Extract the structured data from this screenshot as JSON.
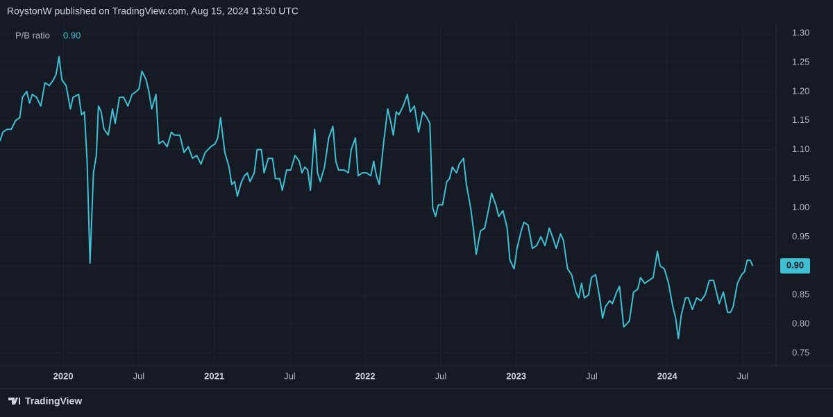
{
  "chart_data": {
    "type": "line",
    "title": "RoystonW published on TradingView.com, Aug 15, 2024 13:50 UTC",
    "brand": "TradingView",
    "current_value_label": "0.90",
    "grid": true,
    "x": [
      2019.581,
      2019.6,
      2019.628,
      2019.656,
      2019.684,
      2019.712,
      2019.73,
      2019.758,
      2019.777,
      2019.795,
      2019.823,
      2019.851,
      2019.879,
      2019.907,
      2019.935,
      2019.953,
      2019.972,
      2019.991,
      2020.019,
      2020.047,
      2020.065,
      2020.102,
      2020.121,
      2020.14,
      2020.158,
      2020.177,
      2020.2,
      2020.219,
      2020.233,
      2020.251,
      2020.27,
      2020.298,
      2020.326,
      2020.344,
      2020.372,
      2020.4,
      2020.428,
      2020.456,
      2020.484,
      2020.502,
      2020.521,
      2020.549,
      2020.567,
      2020.586,
      2020.614,
      2020.633,
      2020.66,
      2020.688,
      2020.716,
      2020.735,
      2020.772,
      2020.8,
      2020.828,
      2020.856,
      2020.884,
      2020.912,
      2020.94,
      2020.977,
      2021.005,
      2021.023,
      2021.042,
      2021.07,
      2021.098,
      2021.116,
      2021.135,
      2021.153,
      2021.181,
      2021.2,
      2021.219,
      2021.237,
      2021.265,
      2021.284,
      2021.312,
      2021.33,
      2021.358,
      2021.386,
      2021.405,
      2021.433,
      2021.451,
      2021.479,
      2021.507,
      2021.535,
      2021.563,
      2021.581,
      2021.6,
      2021.619,
      2021.637,
      2021.665,
      2021.684,
      2021.702,
      2021.73,
      2021.758,
      2021.786,
      2021.805,
      2021.823,
      2021.86,
      2021.888,
      2021.907,
      2021.935,
      2021.953,
      2021.981,
      2022.009,
      2022.037,
      2022.056,
      2022.074,
      2022.093,
      2022.121,
      2022.149,
      2022.167,
      2022.186,
      2022.205,
      2022.223,
      2022.251,
      2022.279,
      2022.298,
      2022.326,
      2022.353,
      2022.381,
      2022.409,
      2022.428,
      2022.447,
      2022.465,
      2022.484,
      2022.512,
      2022.54,
      2022.558,
      2022.577,
      2022.605,
      2022.623,
      2022.651,
      2022.67,
      2022.698,
      2022.716,
      2022.735,
      2022.763,
      2022.791,
      2022.819,
      2022.837,
      2022.865,
      2022.884,
      2022.912,
      2022.94,
      2022.958,
      2022.986,
      2023.005,
      2023.033,
      2023.051,
      2023.079,
      2023.107,
      2023.135,
      2023.163,
      2023.191,
      2023.219,
      2023.247,
      2023.265,
      2023.293,
      2023.312,
      2023.34,
      2023.367,
      2023.395,
      2023.414,
      2023.433,
      2023.451,
      2023.479,
      2023.498,
      2023.526,
      2023.553,
      2023.572,
      2023.591,
      2023.619,
      2023.637,
      2023.665,
      2023.684,
      2023.712,
      2023.749,
      2023.777,
      2023.805,
      2023.823,
      2023.851,
      2023.879,
      2023.907,
      2023.935,
      2023.953,
      2023.981,
      2024.009,
      2024.037,
      2024.056,
      2024.074,
      2024.093,
      2024.121,
      2024.14,
      2024.167,
      2024.195,
      2024.223,
      2024.251,
      2024.279,
      2024.307,
      2024.326,
      2024.344,
      2024.372,
      2024.4,
      2024.419,
      2024.437,
      2024.465,
      2024.493,
      2024.512,
      2024.53,
      2024.549,
      2024.567
    ],
    "series": [
      {
        "name": "P/B ratio",
        "color": "#3fc1d3",
        "values": [
          1.115,
          1.13,
          1.135,
          1.135,
          1.15,
          1.155,
          1.19,
          1.2,
          1.18,
          1.195,
          1.19,
          1.175,
          1.215,
          1.21,
          1.22,
          1.23,
          1.26,
          1.22,
          1.21,
          1.17,
          1.19,
          1.195,
          1.16,
          1.165,
          1.08,
          0.905,
          1.06,
          1.09,
          1.175,
          1.165,
          1.135,
          1.125,
          1.17,
          1.145,
          1.19,
          1.19,
          1.175,
          1.195,
          1.2,
          1.205,
          1.235,
          1.22,
          1.2,
          1.17,
          1.195,
          1.11,
          1.115,
          1.105,
          1.13,
          1.125,
          1.125,
          1.095,
          1.105,
          1.085,
          1.09,
          1.075,
          1.095,
          1.105,
          1.11,
          1.12,
          1.155,
          1.095,
          1.07,
          1.04,
          1.045,
          1.02,
          1.045,
          1.055,
          1.06,
          1.045,
          1.06,
          1.1,
          1.1,
          1.06,
          1.085,
          1.085,
          1.05,
          1.05,
          1.03,
          1.065,
          1.065,
          1.09,
          1.08,
          1.06,
          1.07,
          1.065,
          1.03,
          1.135,
          1.06,
          1.045,
          1.07,
          1.12,
          1.14,
          1.08,
          1.065,
          1.065,
          1.06,
          1.1,
          1.12,
          1.055,
          1.06,
          1.06,
          1.055,
          1.08,
          1.055,
          1.04,
          1.11,
          1.17,
          1.15,
          1.125,
          1.165,
          1.16,
          1.175,
          1.195,
          1.165,
          1.175,
          1.13,
          1.165,
          1.155,
          1.145,
          1.0,
          0.985,
          1.005,
          1.005,
          1.045,
          1.05,
          1.07,
          1.06,
          1.075,
          1.085,
          1.04,
          1.0,
          0.965,
          0.92,
          0.96,
          0.965,
          1.0,
          1.025,
          1.005,
          0.985,
          0.995,
          0.965,
          0.91,
          0.895,
          0.93,
          0.96,
          0.975,
          0.97,
          0.93,
          0.935,
          0.95,
          0.935,
          0.965,
          0.945,
          0.93,
          0.955,
          0.945,
          0.895,
          0.885,
          0.855,
          0.845,
          0.87,
          0.845,
          0.85,
          0.88,
          0.885,
          0.845,
          0.81,
          0.83,
          0.84,
          0.835,
          0.855,
          0.865,
          0.795,
          0.805,
          0.855,
          0.86,
          0.88,
          0.87,
          0.875,
          0.88,
          0.925,
          0.9,
          0.895,
          0.87,
          0.83,
          0.81,
          0.775,
          0.815,
          0.845,
          0.845,
          0.825,
          0.845,
          0.84,
          0.85,
          0.875,
          0.875,
          0.855,
          0.835,
          0.855,
          0.82,
          0.82,
          0.83,
          0.87,
          0.885,
          0.89,
          0.91,
          0.91,
          0.9
        ]
      }
    ],
    "xlim": [
      2019.581,
      2024.721
    ],
    "xticks": [
      {
        "value": 2020,
        "label": "2020"
      },
      {
        "value": 2020.5,
        "label": "Jul"
      },
      {
        "value": 2021,
        "label": "2021"
      },
      {
        "value": 2021.5,
        "label": "Jul"
      },
      {
        "value": 2022,
        "label": "2022"
      },
      {
        "value": 2022.5,
        "label": "Jul"
      },
      {
        "value": 2023,
        "label": "2023"
      },
      {
        "value": 2023.5,
        "label": "Jul"
      },
      {
        "value": 2024,
        "label": "2024"
      },
      {
        "value": 2024.5,
        "label": "Jul"
      }
    ],
    "ylim": [
      0.7284,
      1.3156
    ],
    "yticks": [
      {
        "value": 1.3,
        "label": "1.30"
      },
      {
        "value": 1.25,
        "label": "1.25"
      },
      {
        "value": 1.2,
        "label": "1.20"
      },
      {
        "value": 1.15,
        "label": "1.15"
      },
      {
        "value": 1.1,
        "label": "1.10"
      },
      {
        "value": 1.05,
        "label": "1.05"
      },
      {
        "value": 1.0,
        "label": "1.00"
      },
      {
        "value": 0.95,
        "label": "0.95"
      },
      {
        "value": 0.9,
        "label": "0.90"
      },
      {
        "value": 0.85,
        "label": "0.85"
      },
      {
        "value": 0.8,
        "label": "0.80"
      },
      {
        "value": 0.75,
        "label": "0.75"
      }
    ]
  }
}
